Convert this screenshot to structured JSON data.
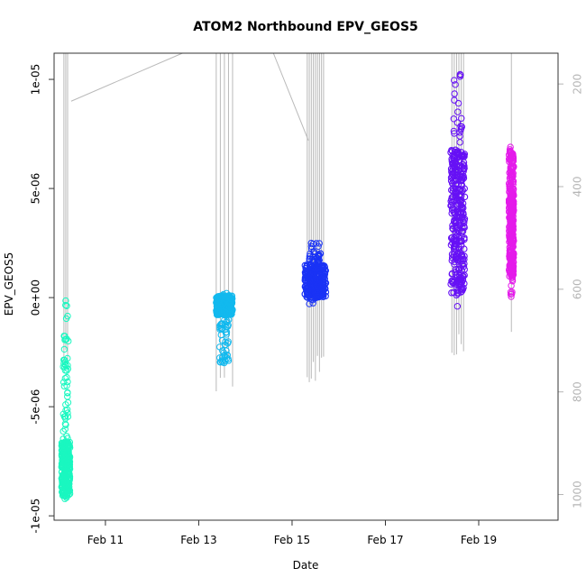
{
  "chart_data": {
    "type": "scatter",
    "title": "ATOM2 Northbound EPV_GEOS5",
    "xlabel": "Date",
    "ylabel": "EPV_GEOS5",
    "x_ticks": [
      "Feb 11",
      "Feb 13",
      "Feb 15",
      "Feb 17",
      "Feb 19"
    ],
    "y_ticks": [
      "-1e-05",
      "-5e-06",
      "0e+00",
      "5e-06",
      "1e-05"
    ],
    "y_right_ticks": [
      "200",
      "400",
      "600",
      "800",
      "1000"
    ],
    "y_right_label": "",
    "grid": false,
    "legend": "none",
    "colors": {
      "feb10": "#1af7c0",
      "feb13": "#12b9ee",
      "feb15": "#1a33f5",
      "feb18": "#6611f5",
      "feb19": "#e41bea",
      "profile_lines": "#b9b9b9"
    },
    "series": [
      {
        "date": "Feb 10",
        "x_days_from_feb11": -0.85,
        "ymin": -9.3e-06,
        "ymax": -1e-07,
        "dense_min": -9.1e-06,
        "dense_max": -6.6e-06
      },
      {
        "date": "Feb 13",
        "x_days_from_feb11": 2.55,
        "ymin": -3e-06,
        "ymax": 3e-07,
        "dense_min": -8e-07,
        "dense_max": 1e-07
      },
      {
        "date": "Feb 15",
        "x_days_from_feb11": 4.5,
        "ymin": -3e-07,
        "ymax": 2.5e-06,
        "dense_min": 0.0,
        "dense_max": 1.5e-06
      },
      {
        "date": "Feb 18",
        "x_days_from_feb11": 7.55,
        "ymin": -4e-07,
        "ymax": 1.04e-05,
        "dense_min": 2e-07,
        "dense_max": 6.8e-06
      },
      {
        "date": "Feb 19",
        "x_days_from_feb11": 8.7,
        "ymin": 0.0,
        "ymax": 6.9e-06,
        "dense_min": 9e-07,
        "dense_max": 6.8e-06
      }
    ],
    "ylim": [
      -1.02e-05,
      1.12e-05
    ],
    "xlim": [
      -1.1,
      9.7
    ],
    "y_right_lim": [
      140,
      1050
    ]
  }
}
